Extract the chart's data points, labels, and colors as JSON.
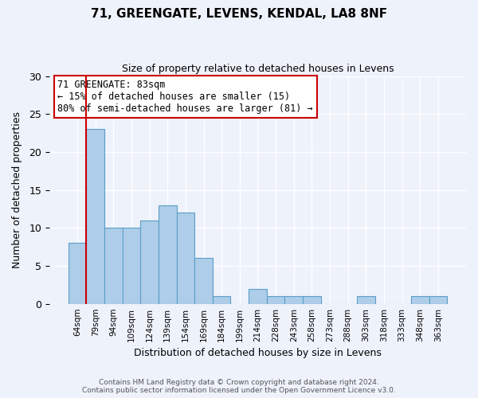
{
  "title": "71, GREENGATE, LEVENS, KENDAL, LA8 8NF",
  "subtitle": "Size of property relative to detached houses in Levens",
  "xlabel": "Distribution of detached houses by size in Levens",
  "ylabel": "Number of detached properties",
  "footer1": "Contains HM Land Registry data © Crown copyright and database right 2024.",
  "footer2": "Contains public sector information licensed under the Open Government Licence v3.0.",
  "categories": [
    "64sqm",
    "79sqm",
    "94sqm",
    "109sqm",
    "124sqm",
    "139sqm",
    "154sqm",
    "169sqm",
    "184sqm",
    "199sqm",
    "214sqm",
    "228sqm",
    "243sqm",
    "258sqm",
    "273sqm",
    "288sqm",
    "303sqm",
    "318sqm",
    "333sqm",
    "348sqm",
    "363sqm"
  ],
  "values": [
    8,
    23,
    10,
    10,
    11,
    13,
    12,
    6,
    1,
    0,
    2,
    1,
    1,
    1,
    0,
    0,
    1,
    0,
    0,
    1,
    1
  ],
  "bar_color": "#aecde8",
  "bar_edge_color": "#5a9ec9",
  "ylim": [
    0,
    30
  ],
  "yticks": [
    0,
    5,
    10,
    15,
    20,
    25,
    30
  ],
  "vline_color": "#cc0000",
  "annotation_title": "71 GREENGATE: 83sqm",
  "annotation_line1": "← 15% of detached houses are smaller (15)",
  "annotation_line2": "80% of semi-detached houses are larger (81) →",
  "annotation_box_color": "#ffffff",
  "annotation_box_edge": "#cc0000",
  "background_color": "#eef2fb"
}
